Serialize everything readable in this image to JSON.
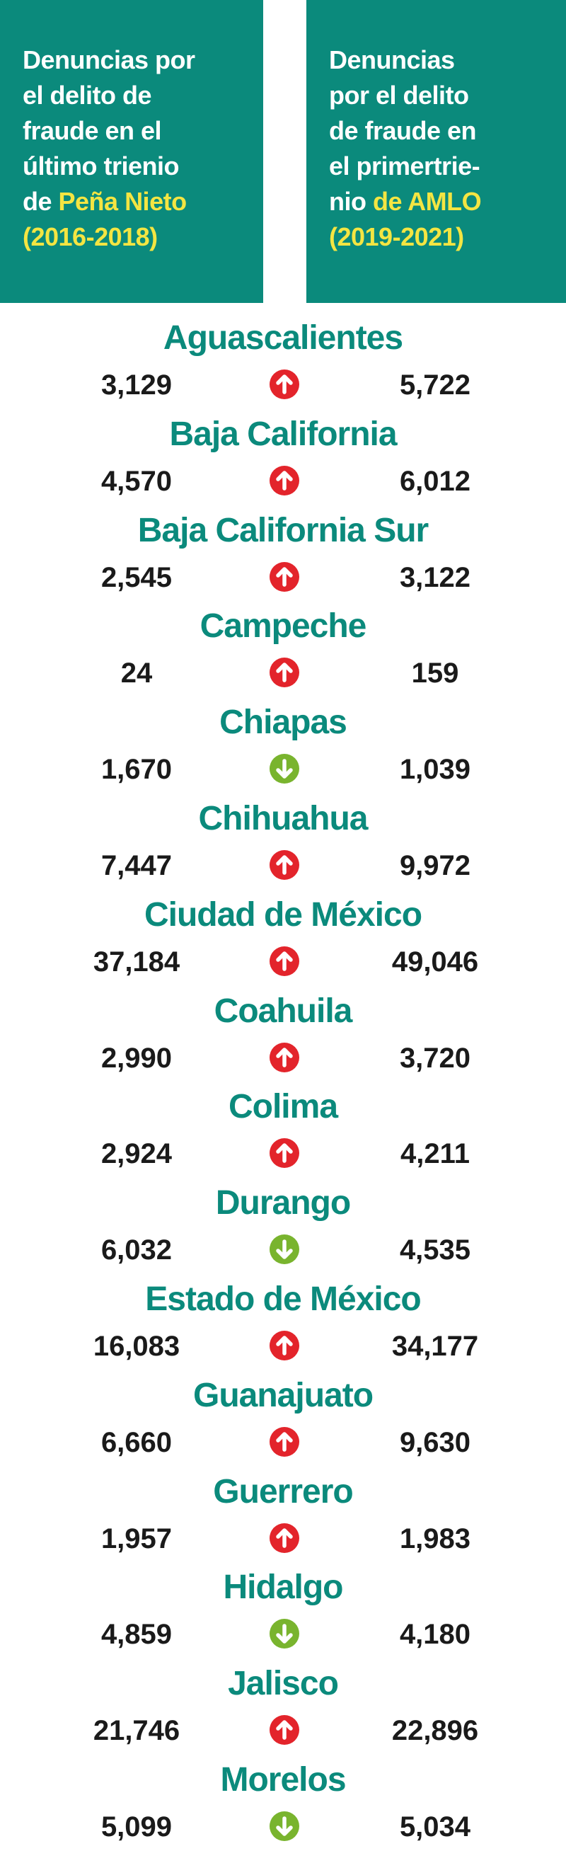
{
  "header": {
    "left": {
      "color": "#0b8a7c",
      "lines": [
        [
          {
            "text": "Denuncias por",
            "color": "#ffffff"
          }
        ],
        [
          {
            "text": "el delito de",
            "color": "#ffffff"
          }
        ],
        [
          {
            "text": "fraude en el",
            "color": "#ffffff"
          }
        ],
        [
          {
            "text": "último trienio",
            "color": "#ffffff"
          }
        ],
        [
          {
            "text": "de ",
            "color": "#ffffff"
          },
          {
            "text": "Peña Nieto",
            "color": "#f4e542"
          }
        ],
        [
          {
            "text": "(2016-2018)",
            "color": "#f4e542"
          }
        ]
      ]
    },
    "right": {
      "color": "#0b8a7c",
      "lines": [
        [
          {
            "text": "Denuncias",
            "color": "#ffffff"
          }
        ],
        [
          {
            "text": "por el delito",
            "color": "#ffffff"
          }
        ],
        [
          {
            "text": "de fraude en",
            "color": "#ffffff"
          }
        ],
        [
          {
            "text": "el primertrie-",
            "color": "#ffffff"
          }
        ],
        [
          {
            "text": "nio ",
            "color": "#ffffff"
          },
          {
            "text": "de AMLO",
            "color": "#f4e542"
          }
        ],
        [
          {
            "text": "(2019-2021)",
            "color": "#f4e542"
          }
        ]
      ]
    }
  },
  "table": {
    "name_color": "#0b8a7c",
    "up_color": "#e3242b",
    "down_color": "#79b42e",
    "rows": [
      {
        "state": "Aguascalientes",
        "before": "3,129",
        "after": "5,722",
        "trend": "up"
      },
      {
        "state": "Baja California",
        "before": "4,570",
        "after": "6,012",
        "trend": "up"
      },
      {
        "state": "Baja California Sur",
        "before": "2,545",
        "after": "3,122",
        "trend": "up"
      },
      {
        "state": "Campeche",
        "before": "24",
        "after": "159",
        "trend": "up"
      },
      {
        "state": "Chiapas",
        "before": "1,670",
        "after": "1,039",
        "trend": "down"
      },
      {
        "state": "Chihuahua",
        "before": "7,447",
        "after": "9,972",
        "trend": "up"
      },
      {
        "state": "Ciudad de México",
        "before": "37,184",
        "after": "49,046",
        "trend": "up"
      },
      {
        "state": "Coahuila",
        "before": "2,990",
        "after": "3,720",
        "trend": "up"
      },
      {
        "state": "Colima",
        "before": "2,924",
        "after": "4,211",
        "trend": "up"
      },
      {
        "state": "Durango",
        "before": "6,032",
        "after": "4,535",
        "trend": "down"
      },
      {
        "state": "Estado de México",
        "before": "16,083",
        "after": "34,177",
        "trend": "up"
      },
      {
        "state": "Guanajuato",
        "before": "6,660",
        "after": "9,630",
        "trend": "up"
      },
      {
        "state": "Guerrero",
        "before": "1,957",
        "after": "1,983",
        "trend": "up"
      },
      {
        "state": "Hidalgo",
        "before": "4,859",
        "after": "4,180",
        "trend": "down"
      },
      {
        "state": "Jalisco",
        "before": "21,746",
        "after": "22,896",
        "trend": "up"
      },
      {
        "state": "Morelos",
        "before": "5,099",
        "after": "5,034",
        "trend": "down"
      }
    ]
  }
}
